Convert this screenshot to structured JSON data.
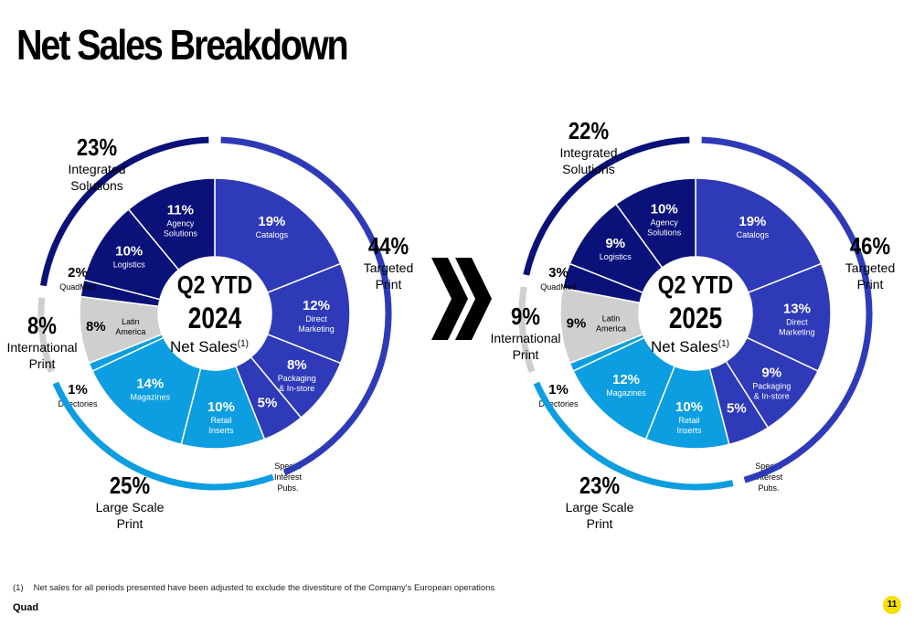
{
  "page": {
    "title": "Net Sales Breakdown",
    "footnote_marker": "(1)",
    "footnote_text": "Net sales for all periods presented have been adjusted to exclude the divestiture of the Company's European operations",
    "logo": "Quad",
    "page_number": "11",
    "arrow_icon": "double-chevron-right-icon"
  },
  "colors": {
    "targeted_print": "#2e3ab8",
    "integrated_solutions": "#0a1178",
    "international_print": "#cfcfcf",
    "large_scale_print": "#0c9ee0",
    "page_badge": "#f5e000"
  },
  "chart_data": [
    {
      "type": "pie",
      "center_title": "Q2 YTD",
      "center_year": "2024",
      "center_subtitle": "Net Sales",
      "center_sup": "(1)",
      "segments": [
        {
          "label": "Catalogs",
          "value": 19,
          "value_label": "19%",
          "group": "Targeted Print"
        },
        {
          "label": "Direct Marketing",
          "value": 12,
          "value_label": "12%",
          "group": "Targeted Print"
        },
        {
          "label": "Packaging & In-store",
          "value": 8,
          "value_label": "8%",
          "group": "Targeted Print"
        },
        {
          "label": "Special Interest Pubs.",
          "value": 5,
          "value_label": "5%",
          "group": "Targeted Print"
        },
        {
          "label": "Retail Inserts",
          "value": 10,
          "value_label": "10%",
          "group": "Large Scale Print"
        },
        {
          "label": "Magazines",
          "value": 14,
          "value_label": "14%",
          "group": "Large Scale Print"
        },
        {
          "label": "Directories",
          "value": 1,
          "value_label": "1%",
          "group": "Large Scale Print"
        },
        {
          "label": "Latin America",
          "value": 8,
          "value_label": "8%",
          "group": "International Print"
        },
        {
          "label": "QuadMed",
          "value": 2,
          "value_label": "2%",
          "group": "Integrated Solutions"
        },
        {
          "label": "Logistics",
          "value": 10,
          "value_label": "10%",
          "group": "Integrated Solutions"
        },
        {
          "label": "Agency Solutions",
          "value": 11,
          "value_label": "11%",
          "group": "Integrated Solutions"
        }
      ],
      "groups": [
        {
          "name": "Targeted Print",
          "value": 44,
          "value_label": "44%"
        },
        {
          "name": "Large Scale Print",
          "value": 25,
          "value_label": "25%"
        },
        {
          "name": "International Print",
          "value": 8,
          "value_label": "8%"
        },
        {
          "name": "Integrated Solutions",
          "value": 23,
          "value_label": "23%"
        }
      ]
    },
    {
      "type": "pie",
      "center_title": "Q2 YTD",
      "center_year": "2025",
      "center_subtitle": "Net Sales",
      "center_sup": "(1)",
      "segments": [
        {
          "label": "Catalogs",
          "value": 19,
          "value_label": "19%",
          "group": "Targeted Print"
        },
        {
          "label": "Direct Marketing",
          "value": 13,
          "value_label": "13%",
          "group": "Targeted Print"
        },
        {
          "label": "Packaging & In-store",
          "value": 9,
          "value_label": "9%",
          "group": "Targeted Print"
        },
        {
          "label": "Special Interest Pubs.",
          "value": 5,
          "value_label": "5%",
          "group": "Targeted Print"
        },
        {
          "label": "Retail Inserts",
          "value": 10,
          "value_label": "10%",
          "group": "Large Scale Print"
        },
        {
          "label": "Magazines",
          "value": 12,
          "value_label": "12%",
          "group": "Large Scale Print"
        },
        {
          "label": "Directories",
          "value": 1,
          "value_label": "1%",
          "group": "Large Scale Print"
        },
        {
          "label": "Latin America",
          "value": 9,
          "value_label": "9%",
          "group": "International Print"
        },
        {
          "label": "QuadMed",
          "value": 3,
          "value_label": "3%",
          "group": "Integrated Solutions"
        },
        {
          "label": "Logistics",
          "value": 9,
          "value_label": "9%",
          "group": "Integrated Solutions"
        },
        {
          "label": "Agency Solutions",
          "value": 10,
          "value_label": "10%",
          "group": "Integrated Solutions"
        }
      ],
      "groups": [
        {
          "name": "Targeted Print",
          "value": 46,
          "value_label": "46%"
        },
        {
          "name": "Large Scale Print",
          "value": 23,
          "value_label": "23%"
        },
        {
          "name": "International Print",
          "value": 9,
          "value_label": "9%"
        },
        {
          "name": "Integrated Solutions",
          "value": 22,
          "value_label": "22%"
        }
      ]
    }
  ]
}
